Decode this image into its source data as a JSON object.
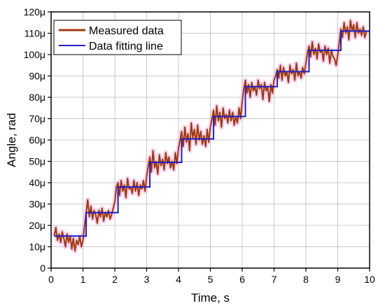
{
  "chart_data": {
    "type": "line",
    "xlabel": "Time, s",
    "ylabel": "Angle, rad",
    "xlim": [
      0,
      10
    ],
    "ylim": [
      0,
      120
    ],
    "x_ticks": [
      0,
      1,
      2,
      3,
      4,
      5,
      6,
      7,
      8,
      9,
      10
    ],
    "x_tick_labels": [
      "0",
      "1",
      "2",
      "3",
      "4",
      "5",
      "6",
      "7",
      "8",
      "9",
      "10"
    ],
    "y_ticks": [
      0,
      10,
      20,
      30,
      40,
      50,
      60,
      70,
      80,
      90,
      100,
      110,
      120
    ],
    "y_tick_labels": [
      "0",
      "10μ",
      "20μ",
      "30μ",
      "40μ",
      "50μ",
      "60μ",
      "70μ",
      "80μ",
      "90μ",
      "100μ",
      "110μ",
      "120μ"
    ],
    "grid": true,
    "legend": {
      "position": "top-left"
    },
    "series": [
      {
        "name": "Measured data",
        "color": "#a0380c",
        "x": [
          0.1,
          0.15,
          0.2,
          0.25,
          0.3,
          0.35,
          0.4,
          0.45,
          0.5,
          0.55,
          0.6,
          0.65,
          0.7,
          0.75,
          0.8,
          0.85,
          0.9,
          0.95,
          1.0,
          1.05,
          1.1,
          1.15,
          1.2,
          1.25,
          1.3,
          1.35,
          1.4,
          1.45,
          1.5,
          1.55,
          1.6,
          1.65,
          1.7,
          1.75,
          1.8,
          1.85,
          1.9,
          1.95,
          2.0,
          2.05,
          2.1,
          2.15,
          2.2,
          2.25,
          2.3,
          2.35,
          2.4,
          2.45,
          2.5,
          2.55,
          2.6,
          2.65,
          2.7,
          2.75,
          2.8,
          2.85,
          2.9,
          2.95,
          3.0,
          3.05,
          3.1,
          3.15,
          3.2,
          3.25,
          3.3,
          3.35,
          3.4,
          3.45,
          3.5,
          3.55,
          3.6,
          3.65,
          3.7,
          3.75,
          3.8,
          3.85,
          3.9,
          3.95,
          4.0,
          4.05,
          4.1,
          4.15,
          4.2,
          4.25,
          4.3,
          4.35,
          4.4,
          4.45,
          4.5,
          4.55,
          4.6,
          4.65,
          4.7,
          4.75,
          4.8,
          4.85,
          4.9,
          4.95,
          5.0,
          5.05,
          5.1,
          5.15,
          5.2,
          5.25,
          5.3,
          5.35,
          5.4,
          5.45,
          5.5,
          5.55,
          5.6,
          5.65,
          5.7,
          5.75,
          5.8,
          5.85,
          5.9,
          5.95,
          6.0,
          6.05,
          6.1,
          6.15,
          6.2,
          6.25,
          6.3,
          6.35,
          6.4,
          6.45,
          6.5,
          6.55,
          6.6,
          6.65,
          6.7,
          6.75,
          6.8,
          6.85,
          6.9,
          6.95,
          7.0,
          7.05,
          7.1,
          7.15,
          7.2,
          7.25,
          7.3,
          7.35,
          7.4,
          7.45,
          7.5,
          7.55,
          7.6,
          7.65,
          7.7,
          7.75,
          7.8,
          7.85,
          7.9,
          7.95,
          8.0,
          8.05,
          8.1,
          8.15,
          8.2,
          8.25,
          8.3,
          8.35,
          8.4,
          8.45,
          8.5,
          8.55,
          8.6,
          8.65,
          8.7,
          8.75,
          8.8,
          8.85,
          8.9,
          8.95,
          9.0,
          9.05,
          9.1,
          9.15,
          9.2,
          9.25,
          9.3,
          9.35,
          9.4,
          9.45,
          9.5,
          9.55,
          9.6,
          9.65,
          9.7,
          9.75,
          9.8,
          9.85,
          9.9
        ],
        "y": [
          15,
          19,
          13,
          16,
          12,
          17,
          14,
          10,
          16,
          12,
          15,
          9,
          14,
          8,
          13,
          11,
          15,
          10,
          13,
          20,
          26,
          32,
          24,
          29,
          23,
          27,
          25,
          21,
          27,
          24,
          28,
          22,
          26,
          24,
          27,
          23,
          25,
          28,
          31,
          38,
          40,
          34,
          41,
          36,
          39,
          33,
          42,
          37,
          38,
          35,
          41,
          36,
          40,
          34,
          39,
          37,
          41,
          36,
          43,
          48,
          52,
          45,
          55,
          47,
          50,
          44,
          53,
          48,
          51,
          46,
          54,
          49,
          52,
          47,
          50,
          46,
          54,
          49,
          56,
          60,
          64,
          57,
          66,
          59,
          63,
          55,
          68,
          61,
          65,
          58,
          67,
          60,
          64,
          58,
          62,
          57,
          65,
          59,
          66,
          70,
          74,
          67,
          76,
          69,
          73,
          66,
          75,
          70,
          72,
          68,
          74,
          69,
          73,
          67,
          71,
          68,
          75,
          70,
          78,
          84,
          88,
          82,
          86,
          80,
          87,
          83,
          85,
          81,
          88,
          84,
          86,
          79,
          87,
          83,
          85,
          78,
          86,
          82,
          88,
          90,
          93,
          89,
          95,
          88,
          94,
          90,
          92,
          87,
          95,
          91,
          93,
          88,
          96,
          90,
          92,
          89,
          94,
          91,
          96,
          101,
          104,
          99,
          106,
          100,
          103,
          98,
          105,
          101,
          102,
          97,
          104,
          100,
          103,
          96,
          102,
          99,
          98,
          95,
          100,
          106,
          112,
          108,
          115,
          110,
          113,
          107,
          116,
          111,
          114,
          108,
          115,
          110,
          112,
          109,
          113,
          108,
          111
        ]
      },
      {
        "name": "Data fitting line",
        "color": "#1e1ec8",
        "step_x": [
          0.1,
          1.1,
          1.1,
          2.1,
          2.1,
          3.1,
          3.1,
          4.1,
          4.1,
          5.1,
          5.1,
          6.1,
          6.1,
          7.1,
          7.1,
          8.1,
          8.1,
          9.1,
          9.1,
          10.0
        ],
        "step_y": [
          15,
          15,
          26,
          26,
          38,
          38,
          49.5,
          49.5,
          60.5,
          60.5,
          71,
          71,
          85,
          85,
          92,
          92,
          102,
          102,
          111,
          111
        ]
      }
    ]
  }
}
